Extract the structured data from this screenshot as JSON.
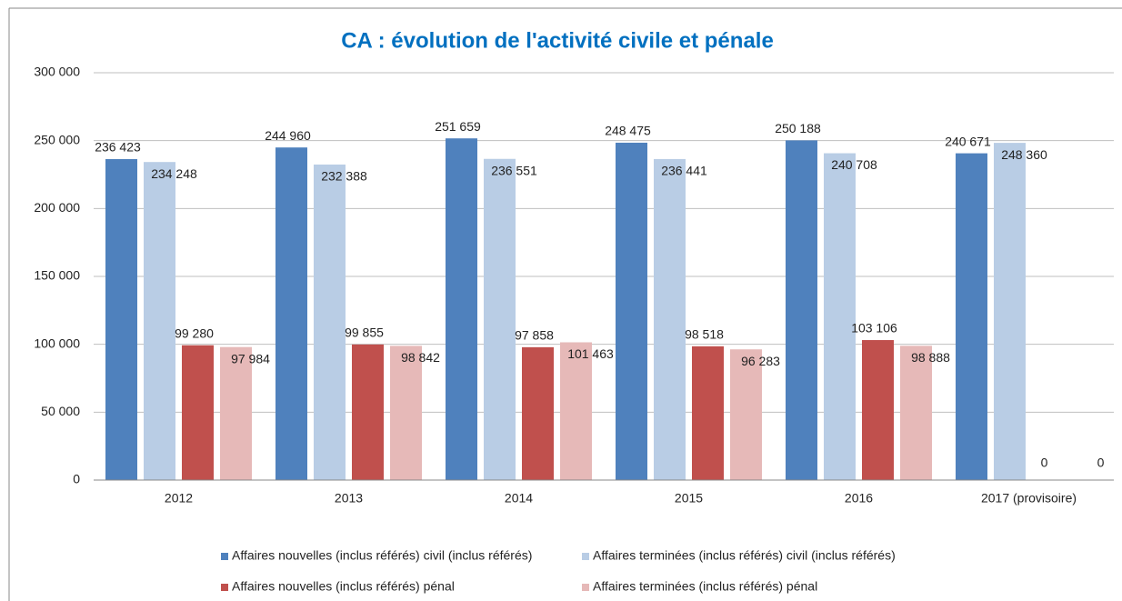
{
  "chart_data": {
    "type": "bar",
    "title": "CA : évolution de l'activité civile et pénale",
    "categories": [
      "2012",
      "2013",
      "2014",
      "2015",
      "2016",
      "2017 (provisoire)"
    ],
    "series": [
      {
        "name": "Affaires nouvelles (inclus référés) civil (inclus référés)",
        "color": "#4f81bd",
        "values": [
          236423,
          244960,
          251659,
          248475,
          250188,
          240671
        ],
        "value_labels": [
          "236 423",
          "244 960",
          "251 659",
          "248 475",
          "250 188",
          "240 671"
        ]
      },
      {
        "name": "Affaires terminées (inclus référés) civil (inclus référés)",
        "color": "#b9cde5",
        "values": [
          234248,
          232388,
          236551,
          236441,
          240708,
          248360
        ],
        "value_labels": [
          "234 248",
          "232 388",
          "236 551",
          "236 441",
          "240 708",
          "248 360"
        ]
      },
      {
        "name": "Affaires nouvelles (inclus référés) pénal",
        "color": "#c0504d",
        "values": [
          99280,
          99855,
          97858,
          98518,
          103106,
          0
        ],
        "value_labels": [
          "99 280",
          "99 855",
          "97 858",
          "98 518",
          "103 106",
          "0"
        ]
      },
      {
        "name": "Affaires terminées (inclus référés) pénal",
        "color": "#e6b9b8",
        "values": [
          97984,
          98842,
          101463,
          96283,
          98888,
          0
        ],
        "value_labels": [
          "97 984",
          "98 842",
          "101 463",
          "96 283",
          "98 888",
          "0"
        ]
      }
    ],
    "ylim": [
      0,
      300000
    ],
    "yticks": [
      0,
      {
        "value": 50000,
        "label": "50 000"
      },
      {
        "value": 100000,
        "label": "100 000"
      },
      {
        "value": 150000,
        "label": "150 000"
      },
      {
        "value": 200000,
        "label": "200 000"
      },
      {
        "value": 250000,
        "label": "250 000"
      },
      {
        "value": 300000,
        "label": "300 000"
      }
    ],
    "grid": true,
    "legend": "bottom"
  }
}
